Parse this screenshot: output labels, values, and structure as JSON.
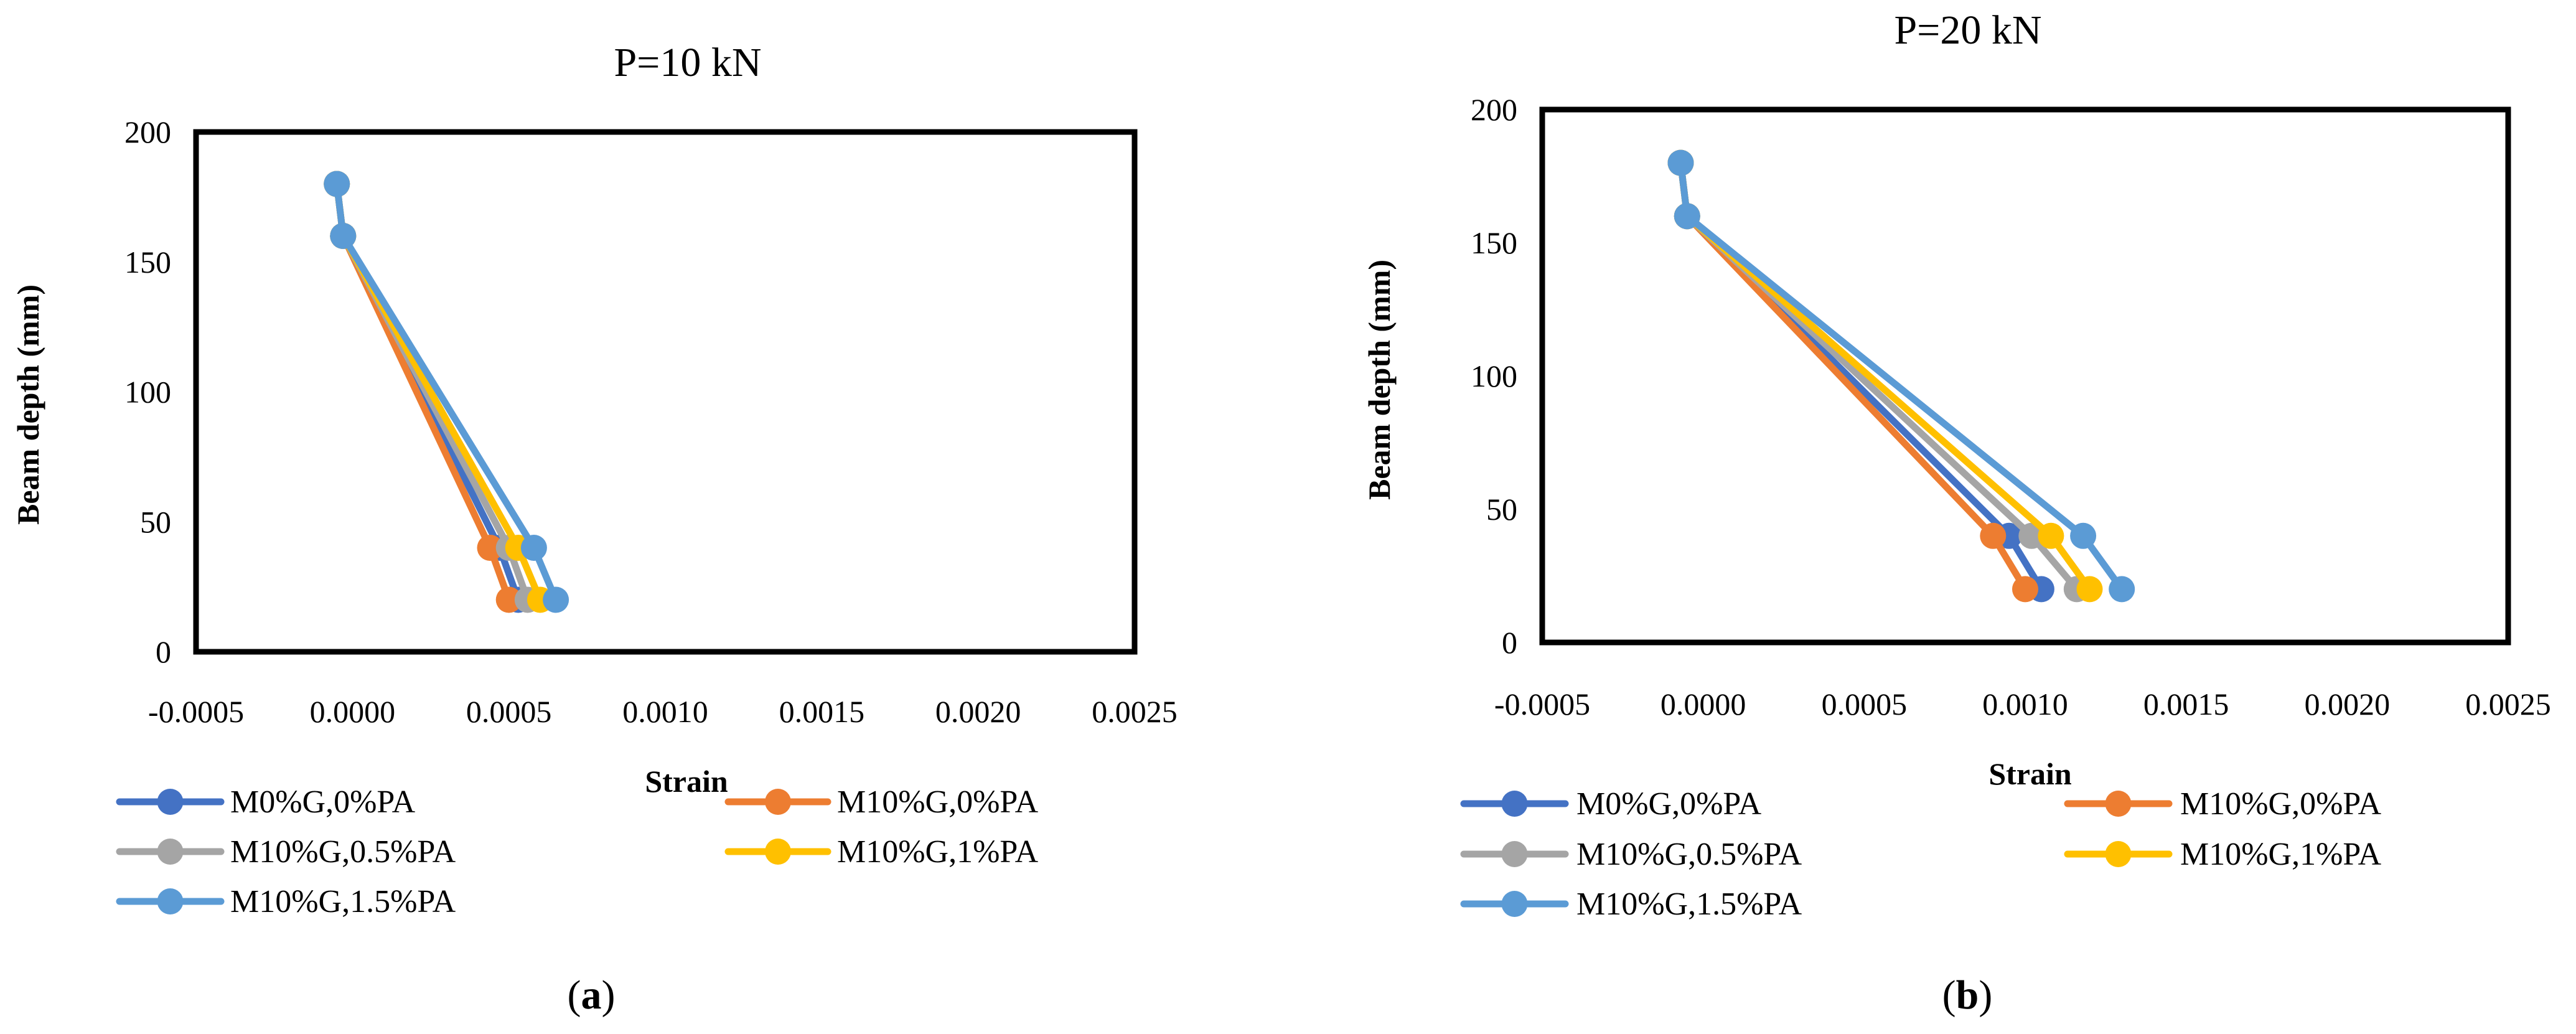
{
  "figure": {
    "panel_labels": [
      {
        "letter": "a",
        "open": "(",
        "close": ")"
      },
      {
        "letter": "b",
        "open": "(",
        "close": ")"
      }
    ]
  },
  "chart_data": [
    {
      "type": "line",
      "title": "P=10 kN",
      "xlabel": "Strain",
      "ylabel": "Beam depth (mm)",
      "xlim": [
        -0.0005,
        0.0025
      ],
      "ylim": [
        0,
        200
      ],
      "x_ticks": [
        "-0.0005",
        "0.0000",
        "0.0005",
        "0.0010",
        "0.0015",
        "0.0020",
        "0.0025"
      ],
      "y_ticks": [
        "0",
        "50",
        "100",
        "150",
        "200"
      ],
      "grid": false,
      "legend_position": "bottom",
      "series": [
        {
          "name": "M0%G,0%PA",
          "color": "#4472C4",
          "points": [
            [
              -5e-05,
              180
            ],
            [
              -3e-05,
              160
            ],
            [
              0.00047,
              40
            ],
            [
              0.00053,
              20
            ]
          ]
        },
        {
          "name": "M10%G,0%PA",
          "color": "#ED7D31",
          "points": [
            [
              -5e-05,
              180
            ],
            [
              -3e-05,
              160
            ],
            [
              0.00044,
              40
            ],
            [
              0.0005,
              20
            ]
          ]
        },
        {
          "name": "M10%G,0.5%PA",
          "color": "#A5A5A5",
          "points": [
            [
              -5e-05,
              180
            ],
            [
              -3e-05,
              160
            ],
            [
              0.0005,
              40
            ],
            [
              0.00056,
              20
            ]
          ]
        },
        {
          "name": "M10%G,1%PA",
          "color": "#FFC000",
          "points": [
            [
              -5e-05,
              180
            ],
            [
              -3e-05,
              160
            ],
            [
              0.00053,
              40
            ],
            [
              0.0006,
              20
            ]
          ]
        },
        {
          "name": "M10%G,1.5%PA",
          "color": "#5B9BD5",
          "points": [
            [
              -5e-05,
              180
            ],
            [
              -3e-05,
              160
            ],
            [
              0.00058,
              40
            ],
            [
              0.00065,
              20
            ]
          ]
        }
      ]
    },
    {
      "type": "line",
      "title": "P=20 kN",
      "xlabel": "Strain",
      "ylabel": "Beam depth (mm)",
      "xlim": [
        -0.0005,
        0.0025
      ],
      "ylim": [
        0,
        200
      ],
      "x_ticks": [
        "-0.0005",
        "0.0000",
        "0.0005",
        "0.0010",
        "0.0015",
        "0.0020",
        "0.0025"
      ],
      "y_ticks": [
        "0",
        "50",
        "100",
        "150",
        "200"
      ],
      "grid": false,
      "legend_position": "bottom",
      "series": [
        {
          "name": "M0%G,0%PA",
          "color": "#4472C4",
          "points": [
            [
              -7e-05,
              180
            ],
            [
              -5e-05,
              160
            ],
            [
              0.00095,
              40
            ],
            [
              0.00105,
              20
            ]
          ]
        },
        {
          "name": "M10%G,0%PA",
          "color": "#ED7D31",
          "points": [
            [
              -7e-05,
              180
            ],
            [
              -5e-05,
              160
            ],
            [
              0.0009,
              40
            ],
            [
              0.001,
              20
            ]
          ]
        },
        {
          "name": "M10%G,0.5%PA",
          "color": "#A5A5A5",
          "points": [
            [
              -7e-05,
              180
            ],
            [
              -5e-05,
              160
            ],
            [
              0.00102,
              40
            ],
            [
              0.00116,
              20
            ]
          ]
        },
        {
          "name": "M10%G,1%PA",
          "color": "#FFC000",
          "points": [
            [
              -7e-05,
              180
            ],
            [
              -5e-05,
              160
            ],
            [
              0.00108,
              40
            ],
            [
              0.0012,
              20
            ]
          ]
        },
        {
          "name": "M10%G,1.5%PA",
          "color": "#5B9BD5",
          "points": [
            [
              -7e-05,
              180
            ],
            [
              -5e-05,
              160
            ],
            [
              0.00118,
              40
            ],
            [
              0.0013,
              20
            ]
          ]
        }
      ]
    }
  ]
}
